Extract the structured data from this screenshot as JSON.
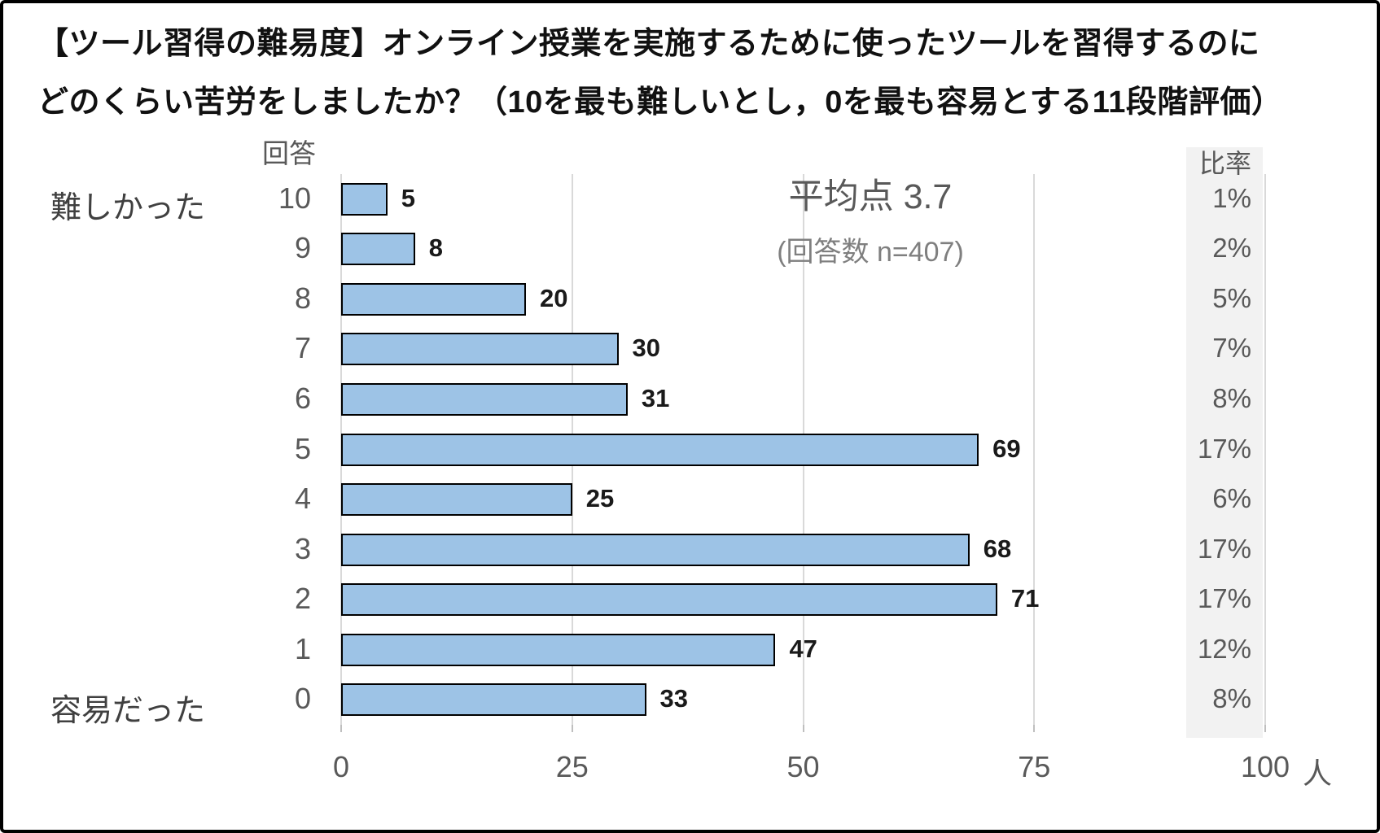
{
  "title": {
    "line1": "【ツール習得の難易度】オンライン授業を実施するために使ったツールを習得するのに",
    "line2": "どのくらい苦労をしましたか？（10を最も難しいとし，0を最も容易とする11段階評価）"
  },
  "chart_data": {
    "type": "bar",
    "orientation": "horizontal",
    "y_axis_header": "回答",
    "top_label": "難しかった",
    "bottom_label": "容易だった",
    "categories": [
      "10",
      "9",
      "8",
      "7",
      "6",
      "5",
      "4",
      "3",
      "2",
      "1",
      "0"
    ],
    "values": [
      5,
      8,
      20,
      30,
      31,
      69,
      25,
      68,
      71,
      47,
      33
    ],
    "pct_header": "比率",
    "percentages": [
      "1%",
      "2%",
      "5%",
      "7%",
      "8%",
      "17%",
      "6%",
      "17%",
      "17%",
      "12%",
      "8%"
    ],
    "xlim": [
      0,
      100
    ],
    "x_ticks": [
      "0",
      "25",
      "50",
      "75",
      "100"
    ],
    "x_unit": "人",
    "grid": true,
    "legend": "none",
    "annotation": {
      "mean_label": "平均点 3.7",
      "n_label": "(回答数 n=407)"
    },
    "bar_color": "#9DC3E6",
    "bar_border_color": "#000000",
    "gridline_color": "#D9D9D9",
    "panel_color": "#F2F2F2"
  }
}
